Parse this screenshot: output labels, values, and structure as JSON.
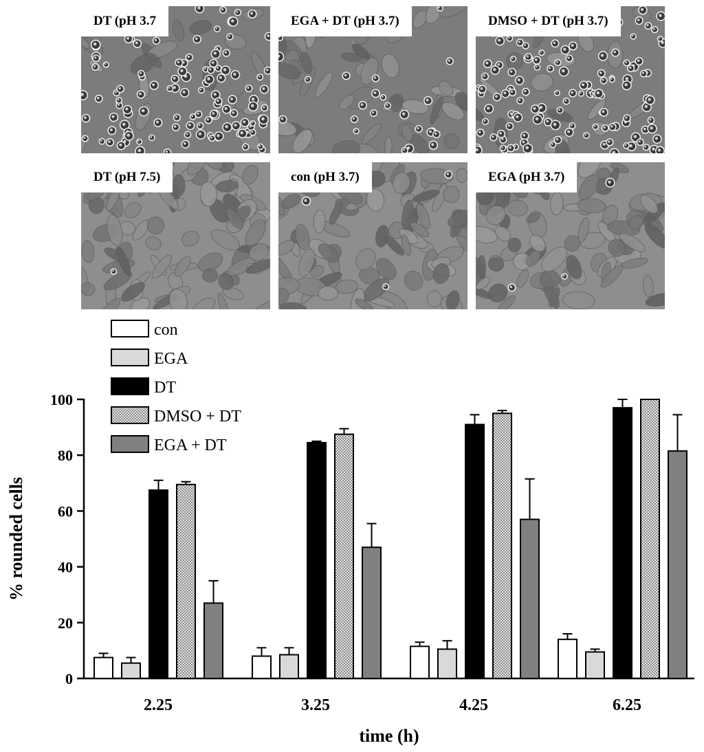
{
  "panels": [
    {
      "label": "DT (pH 3.7",
      "texture": "rounded"
    },
    {
      "label": "EGA + DT (pH 3.7)",
      "texture": "mixed"
    },
    {
      "label": "DMSO + DT (pH 3.7)",
      "texture": "rounded"
    },
    {
      "label": "DT (pH 7.5)",
      "texture": "flat"
    },
    {
      "label": "con (pH 3.7)",
      "texture": "flat"
    },
    {
      "label": "EGA (pH 3.7)",
      "texture": "flat"
    }
  ],
  "chart_data": {
    "type": "bar",
    "categories": [
      "2.25",
      "3.25",
      "4.25",
      "6.25"
    ],
    "xlabel": "time (h)",
    "ylabel": "% rounded cells",
    "ylim": [
      0,
      100
    ],
    "yticks": [
      0,
      20,
      40,
      60,
      80,
      100
    ],
    "grid": false,
    "legend_position": "top-left",
    "series": [
      {
        "name": "con",
        "fill": "#ffffff",
        "pattern": "solid",
        "values": [
          7.5,
          8.0,
          11.5,
          14.0
        ],
        "errors": [
          1.5,
          3.0,
          1.5,
          2.0
        ]
      },
      {
        "name": "EGA",
        "fill": "#d9d9d9",
        "pattern": "solid",
        "values": [
          5.5,
          8.5,
          10.5,
          9.5
        ],
        "errors": [
          2.0,
          2.5,
          3.0,
          1.0
        ]
      },
      {
        "name": "DT",
        "fill": "#000000",
        "pattern": "solid",
        "values": [
          67.5,
          84.5,
          91.0,
          97.0
        ],
        "errors": [
          3.5,
          0.5,
          3.5,
          3.0
        ]
      },
      {
        "name": "DMSO + DT",
        "fill": "#bdbdbd",
        "pattern": "dotted",
        "values": [
          69.5,
          87.5,
          95.0,
          100.0
        ],
        "errors": [
          1.0,
          2.0,
          1.0,
          0.0
        ]
      },
      {
        "name": "EGA + DT",
        "fill": "#808080",
        "pattern": "solid",
        "values": [
          27.0,
          47.0,
          57.0,
          81.5
        ],
        "errors": [
          8.0,
          8.5,
          14.5,
          13.0
        ]
      }
    ]
  }
}
